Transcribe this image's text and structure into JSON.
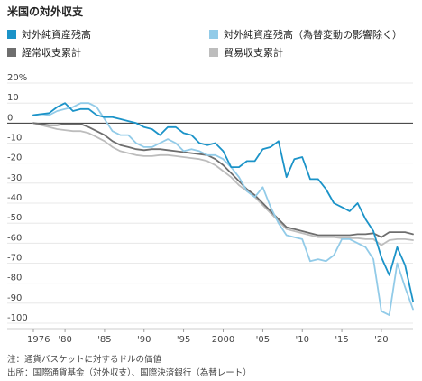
{
  "header": {
    "title": "米国の対外収支"
  },
  "chart_data": {
    "type": "line",
    "ylim": [
      -100,
      20
    ],
    "yticks": [
      20,
      10,
      0,
      -10,
      -20,
      -30,
      -40,
      -50,
      -60,
      -70,
      -80,
      -90,
      -100
    ],
    "ytick_labels": [
      "20%",
      "10",
      "0",
      "-10",
      "-20",
      "-30",
      "-40",
      "-50",
      "-60",
      "-70",
      "-80",
      "-90",
      "-100"
    ],
    "xlim": [
      1976,
      2024
    ],
    "xticks": [
      1976,
      1980,
      1985,
      1990,
      1995,
      2000,
      2005,
      2010,
      2015,
      2020
    ],
    "xtick_labels": [
      "1976",
      "'80",
      "'85",
      "'90",
      "'95",
      "2000",
      "'05",
      "'10",
      "'15",
      "'20"
    ],
    "series": [
      {
        "name": "対外純資産残高",
        "color": "#1b93c8",
        "x": [
          1976,
          1977,
          1978,
          1979,
          1980,
          1981,
          1982,
          1983,
          1984,
          1985,
          1986,
          1987,
          1988,
          1989,
          1990,
          1991,
          1992,
          1993,
          1994,
          1995,
          1996,
          1997,
          1998,
          1999,
          2000,
          2001,
          2002,
          2003,
          2004,
          2005,
          2006,
          2007,
          2008,
          2009,
          2010,
          2011,
          2012,
          2013,
          2014,
          2015,
          2016,
          2017,
          2018,
          2019,
          2020,
          2021,
          2022,
          2023,
          2024
        ],
        "values": [
          4,
          4.5,
          5,
          8,
          10,
          6,
          7,
          7,
          4,
          3,
          3,
          2,
          1,
          0,
          -2,
          -3,
          -6,
          -2,
          -2,
          -5,
          -6,
          -10,
          -11,
          -10,
          -14,
          -22,
          -22,
          -19,
          -19,
          -13,
          -12,
          -9,
          -27,
          -18,
          -17,
          -28,
          -28,
          -33,
          -40,
          -42,
          -44,
          -40,
          -48,
          -54,
          -67,
          -76,
          -62,
          -71,
          -89
        ]
      },
      {
        "name": "対外純資産残高（為替変動の影響除く）",
        "color": "#92cbe8",
        "x": [
          1976,
          1977,
          1978,
          1979,
          1980,
          1981,
          1982,
          1983,
          1984,
          1985,
          1986,
          1987,
          1988,
          1989,
          1990,
          1991,
          1992,
          1993,
          1994,
          1995,
          1996,
          1997,
          1998,
          1999,
          2000,
          2001,
          2002,
          2003,
          2004,
          2005,
          2006,
          2007,
          2008,
          2009,
          2010,
          2011,
          2012,
          2013,
          2014,
          2015,
          2016,
          2017,
          2018,
          2019,
          2020,
          2021,
          2022,
          2023,
          2024
        ],
        "values": [
          4,
          4.5,
          4,
          6,
          7,
          8,
          10,
          10,
          8,
          2,
          -4,
          -6,
          -6,
          -10,
          -12,
          -12,
          -10,
          -8,
          -10,
          -14,
          -13,
          -14,
          -16,
          -16,
          -18,
          -22,
          -27,
          -34,
          -37,
          -32,
          -42,
          -50,
          -56,
          -57,
          -58,
          -69,
          -68,
          -69,
          -66,
          -58,
          -58,
          -60,
          -62,
          -68,
          -94,
          -96,
          -70,
          -82,
          -93
        ]
      },
      {
        "name": "経常収支累計",
        "color": "#6e6e6e",
        "x": [
          1976,
          1977,
          1978,
          1979,
          1980,
          1981,
          1982,
          1983,
          1984,
          1985,
          1986,
          1987,
          1988,
          1989,
          1990,
          1991,
          1992,
          1993,
          1994,
          1995,
          1996,
          1997,
          1998,
          1999,
          2000,
          2001,
          2002,
          2003,
          2004,
          2005,
          2006,
          2007,
          2008,
          2009,
          2010,
          2011,
          2012,
          2013,
          2014,
          2015,
          2016,
          2017,
          2018,
          2019,
          2020,
          2021,
          2022,
          2023,
          2024
        ],
        "values": [
          0,
          -0.5,
          -1,
          -1,
          -0.5,
          -0.5,
          -0.5,
          -2,
          -4,
          -6,
          -9,
          -11,
          -12,
          -13,
          -13.5,
          -13,
          -13,
          -13.5,
          -14,
          -14.5,
          -15,
          -15.5,
          -16,
          -18,
          -21,
          -25,
          -29,
          -33,
          -36,
          -40,
          -44,
          -48,
          -52,
          -53,
          -54,
          -55,
          -56,
          -56,
          -56,
          -56,
          -56,
          -55.5,
          -55.5,
          -55,
          -57,
          -54.5,
          -54.5,
          -54.5,
          -55.5
        ]
      },
      {
        "name": "貿易収支累計",
        "color": "#bdbdbd",
        "x": [
          1976,
          1977,
          1978,
          1979,
          1980,
          1981,
          1982,
          1983,
          1984,
          1985,
          1986,
          1987,
          1988,
          1989,
          1990,
          1991,
          1992,
          1993,
          1994,
          1995,
          1996,
          1997,
          1998,
          1999,
          2000,
          2001,
          2002,
          2003,
          2004,
          2005,
          2006,
          2007,
          2008,
          2009,
          2010,
          2011,
          2012,
          2013,
          2014,
          2015,
          2016,
          2017,
          2018,
          2019,
          2020,
          2021,
          2022,
          2023,
          2024
        ],
        "values": [
          0,
          -1,
          -2,
          -3,
          -3.5,
          -4,
          -4,
          -5,
          -7,
          -9,
          -12,
          -14,
          -15,
          -16,
          -16.5,
          -16.5,
          -16,
          -16,
          -16.5,
          -17,
          -17.5,
          -18,
          -19,
          -21,
          -24,
          -27,
          -31,
          -34,
          -37,
          -41,
          -45,
          -49,
          -53,
          -54,
          -55,
          -56,
          -57,
          -57,
          -57,
          -57.5,
          -57.5,
          -57.5,
          -58,
          -58,
          -61,
          -58.5,
          -58,
          -58,
          -58.5
        ]
      }
    ]
  },
  "notes": {
    "note1": "注：通貨バスケットに対するドルの価値",
    "note2": "出所：国際通貨基金（対外収支）、国際決済銀行（為替レート）"
  }
}
